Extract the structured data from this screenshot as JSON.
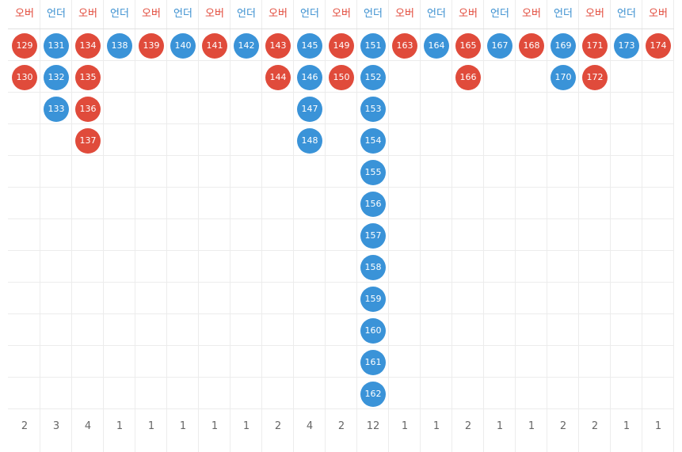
{
  "colors": {
    "over": "#e04b3b",
    "under": "#3a93d8",
    "grid": "#ececec"
  },
  "columns": [
    {
      "type": "over",
      "label": "오버",
      "balls": [
        "129",
        "130"
      ],
      "count": "2"
    },
    {
      "type": "under",
      "label": "언더",
      "balls": [
        "131",
        "132",
        "133"
      ],
      "count": "3"
    },
    {
      "type": "over",
      "label": "오버",
      "balls": [
        "134",
        "135",
        "136",
        "137"
      ],
      "count": "4"
    },
    {
      "type": "under",
      "label": "언더",
      "balls": [
        "138"
      ],
      "count": "1"
    },
    {
      "type": "over",
      "label": "오버",
      "balls": [
        "139"
      ],
      "count": "1"
    },
    {
      "type": "under",
      "label": "언더",
      "balls": [
        "140"
      ],
      "count": "1"
    },
    {
      "type": "over",
      "label": "오버",
      "balls": [
        "141"
      ],
      "count": "1"
    },
    {
      "type": "under",
      "label": "언더",
      "balls": [
        "142"
      ],
      "count": "1"
    },
    {
      "type": "over",
      "label": "오버",
      "balls": [
        "143",
        "144"
      ],
      "count": "2"
    },
    {
      "type": "under",
      "label": "언더",
      "balls": [
        "145",
        "146",
        "147",
        "148"
      ],
      "count": "4"
    },
    {
      "type": "over",
      "label": "오버",
      "balls": [
        "149",
        "150"
      ],
      "count": "2"
    },
    {
      "type": "under",
      "label": "언더",
      "balls": [
        "151",
        "152",
        "153",
        "154",
        "155",
        "156",
        "157",
        "158",
        "159",
        "160",
        "161",
        "162"
      ],
      "count": "12"
    },
    {
      "type": "over",
      "label": "오버",
      "balls": [
        "163"
      ],
      "count": "1"
    },
    {
      "type": "under",
      "label": "언더",
      "balls": [
        "164"
      ],
      "count": "1"
    },
    {
      "type": "over",
      "label": "오버",
      "balls": [
        "165",
        "166"
      ],
      "count": "2"
    },
    {
      "type": "under",
      "label": "언더",
      "balls": [
        "167"
      ],
      "count": "1"
    },
    {
      "type": "over",
      "label": "오버",
      "balls": [
        "168"
      ],
      "count": "1"
    },
    {
      "type": "under",
      "label": "언더",
      "balls": [
        "169",
        "170"
      ],
      "count": "2"
    },
    {
      "type": "over",
      "label": "오버",
      "balls": [
        "171",
        "172"
      ],
      "count": "2"
    },
    {
      "type": "under",
      "label": "언더",
      "balls": [
        "173"
      ],
      "count": "1"
    },
    {
      "type": "over",
      "label": "오버",
      "balls": [
        "174"
      ],
      "count": "1"
    }
  ]
}
